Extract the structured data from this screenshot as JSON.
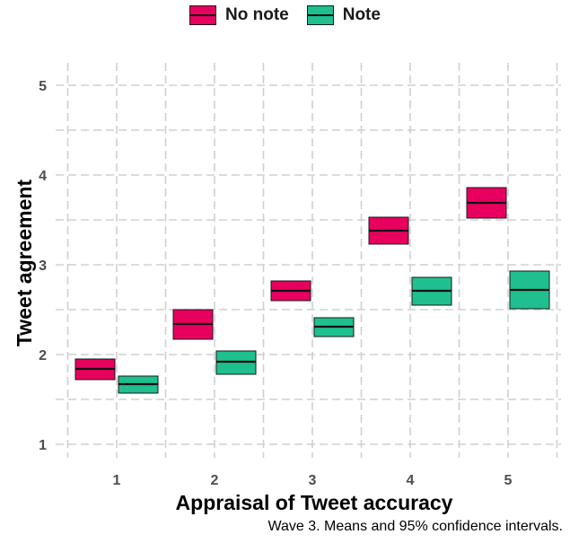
{
  "chart_data": {
    "type": "crossbar",
    "caption": "Wave 3. Means and 95% confidence intervals.",
    "xlabel": "Appraisal of Tweet accuracy",
    "ylabel": "Tweet agreement",
    "categories": [
      "1",
      "2",
      "3",
      "4",
      "5"
    ],
    "y_ticks": [
      "1",
      "2",
      "3",
      "4",
      "5"
    ],
    "ylim": [
      0.95,
      5.2
    ],
    "grid": true,
    "legend_position": "top",
    "series": [
      {
        "name": "No note",
        "color": "#e8005f",
        "mean": [
          1.84,
          2.34,
          2.71,
          3.38,
          3.69
        ],
        "lower": [
          1.72,
          2.17,
          2.6,
          3.23,
          3.52
        ],
        "upper": [
          1.95,
          2.5,
          2.82,
          3.53,
          3.86
        ]
      },
      {
        "name": "Note",
        "color": "#1fbf8f",
        "mean": [
          1.67,
          1.92,
          2.31,
          2.71,
          2.72
        ],
        "lower": [
          1.57,
          1.78,
          2.2,
          2.55,
          2.51
        ],
        "upper": [
          1.76,
          2.04,
          2.41,
          2.86,
          2.93
        ]
      }
    ]
  }
}
